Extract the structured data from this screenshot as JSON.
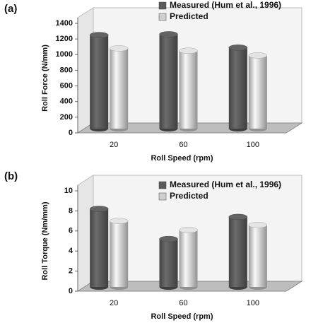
{
  "chart_data": [
    {
      "type": "bar",
      "panel_label": "(a)",
      "y_label": "Roll Force (N/mm)",
      "x_label": "Roll Speed (rpm)",
      "categories": [
        "20",
        "60",
        "100"
      ],
      "series": [
        {
          "name": "Measured (Hum et al., 1996)",
          "color": "#5a5a5a",
          "values": [
            1250,
            1260,
            1090
          ]
        },
        {
          "name": "Predicted",
          "color": "#cfcfcf",
          "values": [
            1080,
            1050,
            990
          ]
        }
      ],
      "ylim": [
        0,
        1400
      ],
      "yticks": [
        0,
        200,
        400,
        600,
        800,
        1000,
        1200,
        1400
      ]
    },
    {
      "type": "bar",
      "panel_label": "(b)",
      "y_label": "Roll Torque (Nm/mm)",
      "x_label": "Roll Speed (rpm)",
      "categories": [
        "20",
        "60",
        "100"
      ],
      "series": [
        {
          "name": "Measured (Hum et al., 1996)",
          "color": "#5a5a5a",
          "values": [
            8.2,
            5.2,
            7.4
          ]
        },
        {
          "name": "Predicted",
          "color": "#cfcfcf",
          "values": [
            7.0,
            6.1,
            6.6
          ]
        }
      ],
      "ylim": [
        0,
        10
      ],
      "yticks": [
        0,
        2,
        4,
        6,
        8,
        10
      ]
    }
  ]
}
